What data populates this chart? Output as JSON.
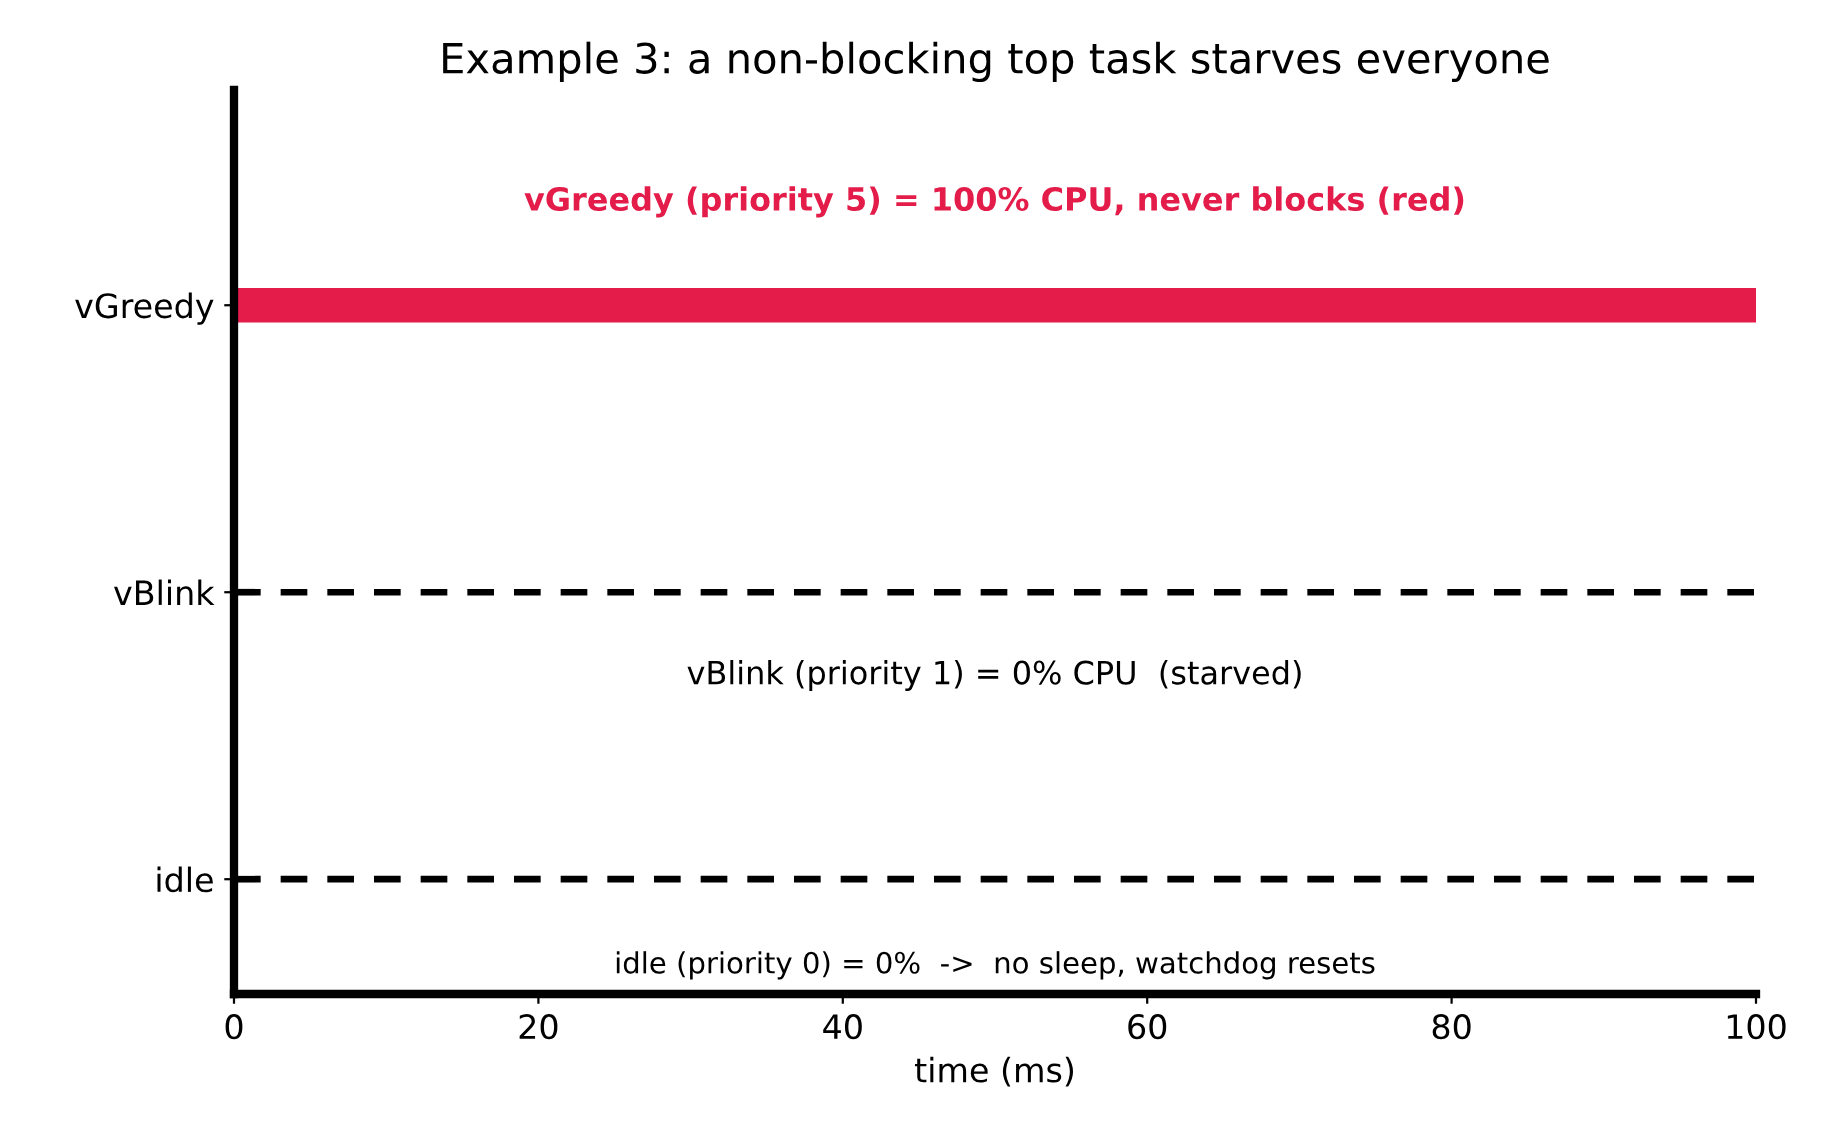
{
  "chart_data": {
    "type": "bar",
    "orientation": "horizontal",
    "title": "Example 3: a non-blocking top task starves everyone",
    "xlabel": "time (ms)",
    "xlim": [
      0,
      100
    ],
    "xticks": [
      0,
      20,
      40,
      60,
      80,
      100
    ],
    "categories": [
      "vGreedy",
      "vBlink",
      "idle"
    ],
    "values": [
      100,
      0,
      0
    ],
    "colors": [
      "#e31c4a",
      "#000000",
      "#000000"
    ],
    "grid": false,
    "legend": false,
    "ref_lines": [
      {
        "axis": "y",
        "value": "vBlink",
        "color": "#000000",
        "line_style": "dashed"
      },
      {
        "axis": "y",
        "value": "idle",
        "color": "#000000",
        "line_style": "dashed"
      }
    ],
    "annotations": [
      "vGreedy (priority 5) = 100% CPU, never blocks (red)",
      "vBlink (priority 1) = 0% CPU  (starved)",
      "idle (priority 0) = 0%  ->  no sleep, watchdog resets"
    ]
  }
}
